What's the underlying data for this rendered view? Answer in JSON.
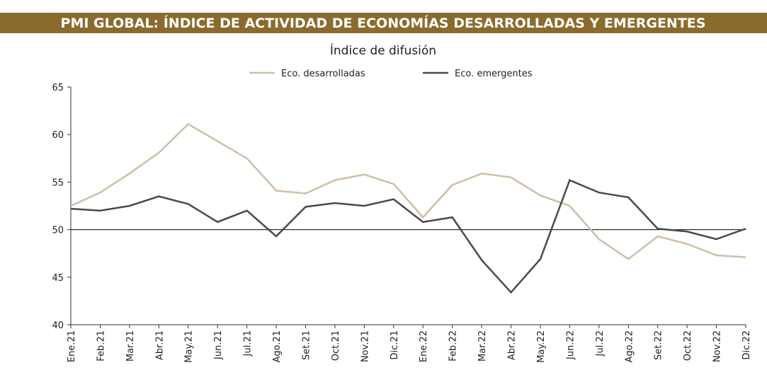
{
  "chart_data": {
    "type": "line",
    "title": "PMI GLOBAL: ÍNDICE DE ACTIVIDAD DE ECONOMÍAS DESARROLLADAS Y EMERGENTES",
    "subtitle": "Índice de difusión",
    "categories": [
      "Ene.21",
      "Feb.21",
      "Mar.21",
      "Abr.21",
      "May.21",
      "Jun.21",
      "Jul.21",
      "Ago.21",
      "Set.21",
      "Oct.21",
      "Nov.21",
      "Dic.21",
      "Ene.22",
      "Feb.22",
      "Mar.22",
      "Abr.22",
      "May.22",
      "Jun.22",
      "Jul.22",
      "Ago.22",
      "Set.22",
      "Oct.22",
      "Nov.22",
      "Dic.22"
    ],
    "series": [
      {
        "name": "Eco. desarrolladas",
        "color": "#cdbfa7",
        "values": [
          52.5,
          53.9,
          55.9,
          58.1,
          61.1,
          59.3,
          57.5,
          54.1,
          53.8,
          55.2,
          55.8,
          54.8,
          51.3,
          54.7,
          55.9,
          55.5,
          53.6,
          52.5,
          49.0,
          46.9,
          49.3,
          48.5,
          47.3,
          47.1
        ]
      },
      {
        "name": "Eco. emergentes",
        "color": "#4a4a4a",
        "values": [
          52.2,
          52.0,
          52.5,
          53.5,
          52.7,
          50.8,
          52.0,
          49.3,
          52.4,
          52.8,
          52.5,
          53.2,
          50.8,
          51.3,
          46.8,
          43.4,
          46.9,
          55.2,
          53.9,
          53.4,
          50.1,
          49.8,
          49.0,
          50.1
        ]
      }
    ],
    "ylim": [
      40,
      65
    ],
    "yticks": [
      40,
      45,
      50,
      55,
      60,
      65
    ],
    "hline": 50,
    "grid": false,
    "legend": "top"
  }
}
